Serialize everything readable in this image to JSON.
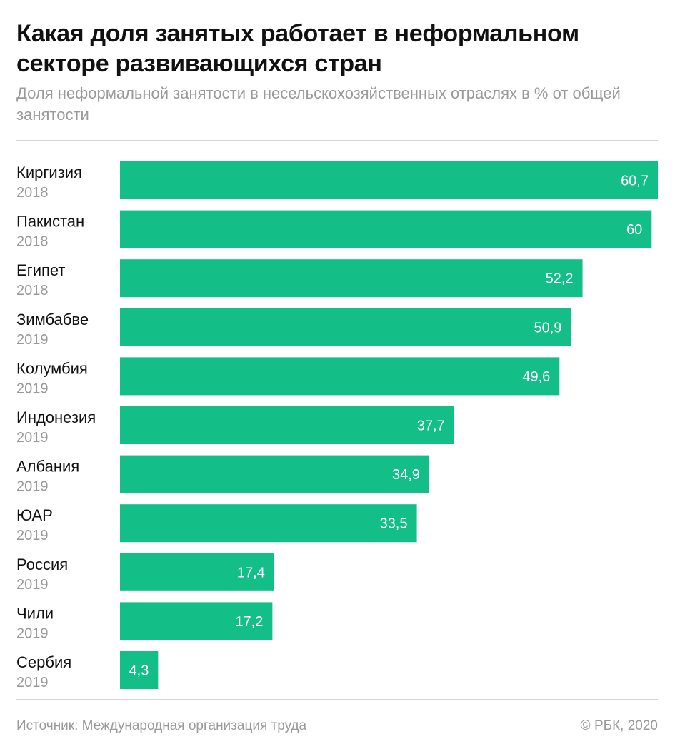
{
  "title": "Какая доля занятых работает в неформальном секторе развивающихся стран",
  "subtitle": "Доля неформальной занятости в несельскохозяйственных отраслях в % от общей занятости",
  "footer": {
    "source": "Источник: Международная организация труда",
    "copyright": "© РБК, 2020"
  },
  "colors": {
    "bar": "#13bf87",
    "value_text": "#ffffff",
    "country_text": "#111111",
    "year_text": "#9a9a9a"
  },
  "chart_data": {
    "type": "bar",
    "orientation": "horizontal",
    "categories": [
      "Киргизия",
      "Пакистан",
      "Египет",
      "Зимбабве",
      "Колумбия",
      "Индонезия",
      "Албания",
      "ЮАР",
      "Россия",
      "Чили",
      "Сербия"
    ],
    "years": [
      "2018",
      "2018",
      "2018",
      "2019",
      "2019",
      "2019",
      "2019",
      "2019",
      "2019",
      "2019",
      "2019"
    ],
    "values": [
      60.7,
      60,
      52.2,
      50.9,
      49.6,
      37.7,
      34.9,
      33.5,
      17.4,
      17.2,
      4.3
    ],
    "value_labels": [
      "60,7",
      "60",
      "52,2",
      "50,9",
      "49,6",
      "37,7",
      "34,9",
      "33,5",
      "17,4",
      "17,2",
      "4,3"
    ],
    "xlim": [
      0,
      60.7
    ],
    "grid": false,
    "xlabel": "",
    "ylabel": ""
  }
}
